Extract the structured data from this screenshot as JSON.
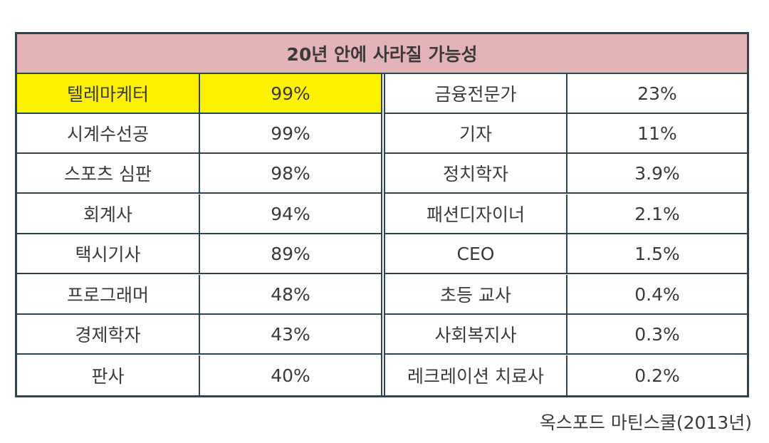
{
  "title": "20년 안에 사라질 가능성",
  "left_rows": [
    {
      "job": "텔레마케터",
      "probability": "99%"
    },
    {
      "job": "시계수선공",
      "probability": "99%"
    },
    {
      "job": "스포츠 심판",
      "probability": "98%"
    },
    {
      "job": "회계사",
      "probability": "94%"
    },
    {
      "job": "택시기사",
      "probability": "89%"
    },
    {
      "job": "프로그래머",
      "probability": "48%"
    },
    {
      "job": "경제학자",
      "probability": "43%"
    },
    {
      "job": "판사",
      "probability": "40%"
    }
  ],
  "right_rows": [
    {
      "job": "금융전문가",
      "probability": "23%"
    },
    {
      "job": "기자",
      "probability": "11%"
    },
    {
      "job": "정치학자",
      "probability": "3.9%"
    },
    {
      "job": "패션디자이너",
      "probability": "2.1%"
    },
    {
      "job": "CEO",
      "probability": "1.5%"
    },
    {
      "job": "초등 교사",
      "probability": "0.4%"
    },
    {
      "job": "사회복지사",
      "probability": "0.3%"
    },
    {
      "job": "레크레이션 치료사",
      "probability": "0.2%"
    }
  ],
  "highlight_color": "#fff200",
  "header_color": "#e4b3b7",
  "border_color": "#2f4453",
  "source": "옥스포드 마틴스쿨(2013년)"
}
